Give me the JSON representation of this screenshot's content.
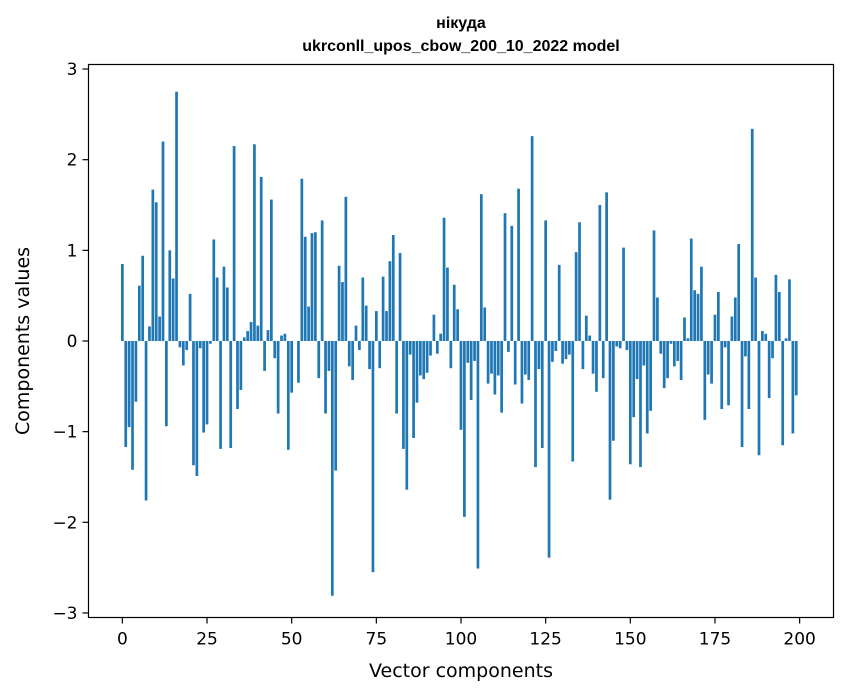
{
  "chart_data": {
    "type": "bar",
    "title": "нікуда",
    "subtitle": "ukrconll_upos_cbow_200_10_2022 model",
    "xlabel": "Vector components",
    "ylabel": "Components values",
    "xlim": [
      -10,
      210
    ],
    "ylim": [
      -3.05,
      3.05
    ],
    "xticks": [
      0,
      25,
      50,
      75,
      100,
      125,
      150,
      175,
      200
    ],
    "xtick_labels": [
      "0",
      "25",
      "50",
      "75",
      "100",
      "125",
      "150",
      "175",
      "200"
    ],
    "yticks": [
      -3,
      -2,
      -1,
      0,
      1,
      2,
      3
    ],
    "ytick_labels": [
      "−3",
      "−2",
      "−1",
      "0",
      "1",
      "2",
      "3"
    ],
    "grid": false,
    "bar_color": "#1f77b4",
    "x": [
      0,
      1,
      2,
      3,
      4,
      5,
      6,
      7,
      8,
      9,
      10,
      11,
      12,
      13,
      14,
      15,
      16,
      17,
      18,
      19,
      20,
      21,
      22,
      23,
      24,
      25,
      26,
      27,
      28,
      29,
      30,
      31,
      32,
      33,
      34,
      35,
      36,
      37,
      38,
      39,
      40,
      41,
      42,
      43,
      44,
      45,
      46,
      47,
      48,
      49,
      50,
      51,
      52,
      53,
      54,
      55,
      56,
      57,
      58,
      59,
      60,
      61,
      62,
      63,
      64,
      65,
      66,
      67,
      68,
      69,
      70,
      71,
      72,
      73,
      74,
      75,
      76,
      77,
      78,
      79,
      80,
      81,
      82,
      83,
      84,
      85,
      86,
      87,
      88,
      89,
      90,
      91,
      92,
      93,
      94,
      95,
      96,
      97,
      98,
      99,
      100,
      101,
      102,
      103,
      104,
      105,
      106,
      107,
      108,
      109,
      110,
      111,
      112,
      113,
      114,
      115,
      116,
      117,
      118,
      119,
      120,
      121,
      122,
      123,
      124,
      125,
      126,
      127,
      128,
      129,
      130,
      131,
      132,
      133,
      134,
      135,
      136,
      137,
      138,
      139,
      140,
      141,
      142,
      143,
      144,
      145,
      146,
      147,
      148,
      149,
      150,
      151,
      152,
      153,
      154,
      155,
      156,
      157,
      158,
      159,
      160,
      161,
      162,
      163,
      164,
      165,
      166,
      167,
      168,
      169,
      170,
      171,
      172,
      173,
      174,
      175,
      176,
      177,
      178,
      179,
      180,
      181,
      182,
      183,
      184,
      185,
      186,
      187,
      188,
      189,
      190,
      191,
      192,
      193,
      194,
      195,
      196,
      197,
      198,
      199
    ],
    "values": [
      0.85,
      -1.17,
      -0.95,
      -1.42,
      -0.67,
      0.61,
      0.94,
      -1.76,
      0.16,
      1.67,
      1.53,
      0.27,
      2.2,
      -0.94,
      1.0,
      0.69,
      2.75,
      -0.07,
      -0.27,
      -0.1,
      0.52,
      -1.37,
      -1.49,
      -0.08,
      -1.01,
      -0.92,
      -0.03,
      1.12,
      0.7,
      -1.19,
      0.82,
      0.59,
      -1.18,
      2.15,
      -0.75,
      -0.54,
      0.04,
      0.11,
      0.21,
      2.17,
      0.17,
      1.81,
      -0.33,
      0.12,
      1.56,
      -0.19,
      -0.8,
      0.06,
      0.08,
      -1.2,
      -0.57,
      0.0,
      -0.46,
      1.79,
      1.15,
      0.38,
      1.19,
      1.2,
      -0.41,
      1.33,
      -0.8,
      -0.33,
      -2.81,
      -1.43,
      0.83,
      0.65,
      1.59,
      -0.28,
      -0.43,
      0.17,
      -0.1,
      0.7,
      0.39,
      -0.31,
      -2.55,
      0.33,
      -0.3,
      0.71,
      0.33,
      0.88,
      1.17,
      -0.8,
      0.97,
      -1.19,
      -1.64,
      -0.15,
      -1.07,
      -0.68,
      -0.38,
      -0.42,
      -0.35,
      -0.16,
      0.29,
      -0.14,
      0.08,
      1.36,
      0.81,
      -0.3,
      0.62,
      0.35,
      -0.98,
      -1.94,
      -0.24,
      -0.65,
      -0.22,
      -2.51,
      1.62,
      0.37,
      -0.47,
      -0.36,
      -0.59,
      -0.38,
      -0.79,
      1.41,
      -0.12,
      1.27,
      -0.48,
      1.68,
      -0.69,
      -0.37,
      -0.43,
      2.26,
      -1.39,
      -0.31,
      -1.18,
      1.33,
      -2.39,
      -0.23,
      -0.11,
      0.84,
      -0.25,
      -0.2,
      -0.15,
      -1.33,
      0.98,
      1.31,
      -0.31,
      0.28,
      0.06,
      -0.36,
      -0.56,
      1.5,
      -0.41,
      1.64,
      -1.75,
      -1.1,
      -0.06,
      -0.08,
      1.03,
      -0.1,
      -1.36,
      -0.84,
      -0.42,
      -1.39,
      -0.27,
      -1.02,
      -0.77,
      1.22,
      0.48,
      -0.14,
      -0.52,
      -0.41,
      -0.03,
      -0.28,
      -0.22,
      -0.43,
      0.26,
      0.03,
      1.13,
      0.56,
      0.52,
      0.82,
      -0.87,
      -0.37,
      -0.47,
      0.29,
      0.54,
      -0.75,
      -0.07,
      -0.71,
      0.27,
      0.48,
      1.07,
      -1.17,
      -0.17,
      -0.75,
      2.34,
      0.7,
      -1.26,
      0.11,
      0.08,
      -0.63,
      -0.19,
      0.73,
      0.54,
      -1.15,
      0.03,
      0.68,
      -1.02,
      -0.6
    ]
  }
}
